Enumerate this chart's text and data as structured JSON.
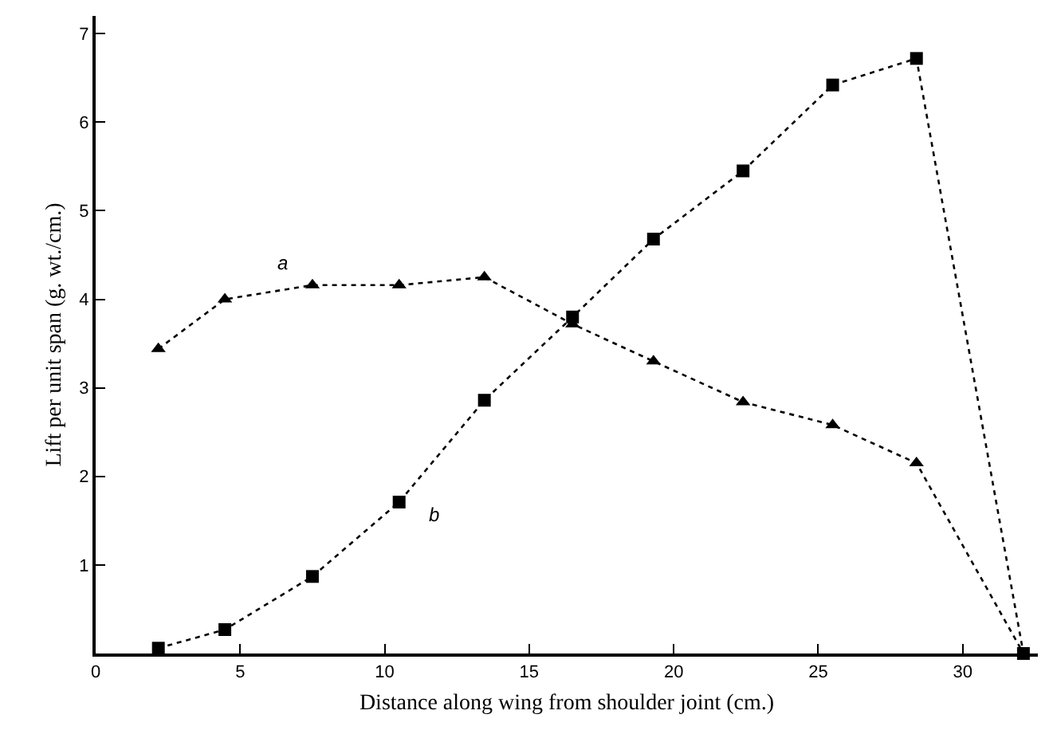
{
  "chart_data": {
    "type": "line",
    "xlabel": "Distance along wing from shoulder joint (cm.)",
    "ylabel": "Lift per unit span (g. wt./cm.)",
    "xlim": [
      0,
      32.6
    ],
    "xticks": [
      0,
      5,
      10,
      15,
      20,
      25,
      30
    ],
    "ylim": [
      0,
      7.2
    ],
    "yticks": [
      1,
      2,
      3,
      4,
      5,
      6,
      7
    ],
    "legend": false,
    "line_style": "dotted",
    "series": [
      {
        "name": "a",
        "color": "#000000",
        "marker": "triangle",
        "x": [
          2.17,
          4.47,
          7.5,
          10.5,
          13.45,
          16.5,
          19.3,
          22.4,
          25.5,
          28.4,
          32.1
        ],
        "values": [
          3.44,
          4.0,
          4.16,
          4.16,
          4.25,
          3.72,
          3.3,
          2.84,
          2.58,
          2.15,
          0
        ]
      },
      {
        "name": "b",
        "color": "#000000",
        "marker": "square",
        "x": [
          2.17,
          4.47,
          7.5,
          10.5,
          13.45,
          16.5,
          19.3,
          22.4,
          25.5,
          28.4,
          32.1
        ],
        "values": [
          0.06,
          0.27,
          0.87,
          1.71,
          2.86,
          3.8,
          4.68,
          5.45,
          6.42,
          6.72,
          0
        ]
      }
    ]
  }
}
